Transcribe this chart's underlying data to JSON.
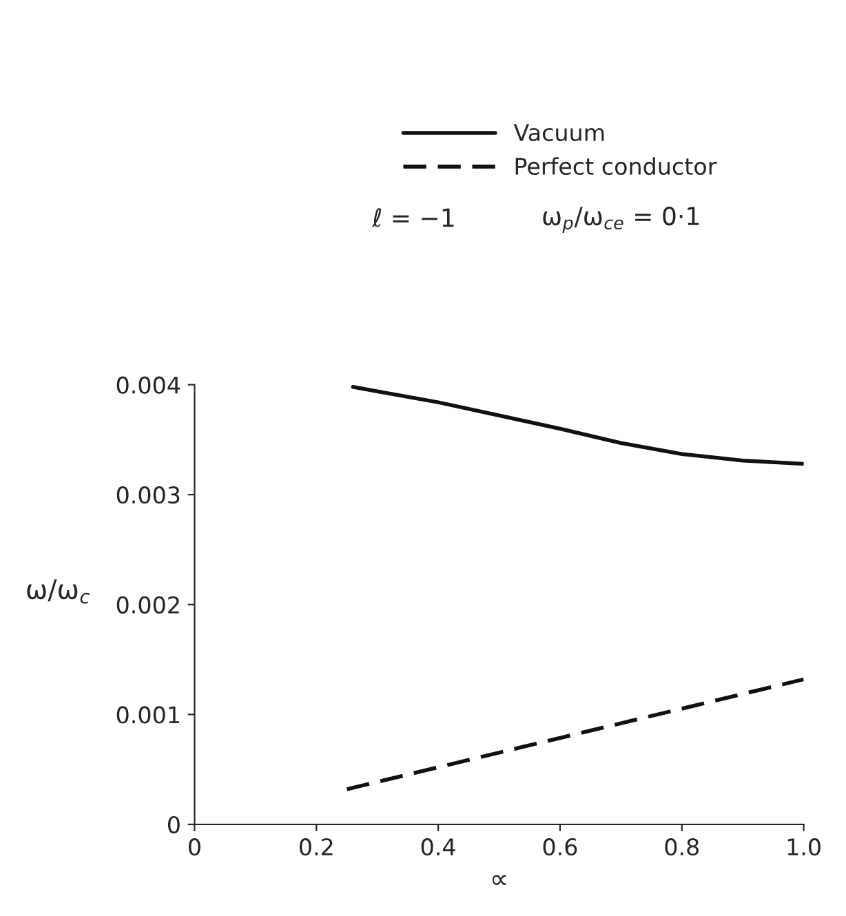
{
  "chart_data": {
    "type": "line",
    "xlabel": "∝",
    "ylabel": "ω/ω$_{c}$",
    "annotations": [
      "ℓ = −1",
      "ω$_{p}$/ω$_{ce}$ = 0·1"
    ],
    "series": [
      {
        "name": "Vacuum",
        "color": "#111111",
        "line_style": "solid",
        "x": [
          0.26,
          0.3,
          0.4,
          0.5,
          0.6,
          0.7,
          0.8,
          0.9,
          1.0
        ],
        "values": [
          0.00398,
          0.00394,
          0.00384,
          0.00372,
          0.0036,
          0.00347,
          0.00337,
          0.00331,
          0.00328
        ]
      },
      {
        "name": "Perfect conductor",
        "color": "#111111",
        "line_style": "dashed",
        "x": [
          0.25,
          1.0
        ],
        "values": [
          0.00032,
          0.00132
        ]
      }
    ],
    "xlim": [
      0,
      1.0
    ],
    "ylim": [
      0,
      0.004
    ],
    "xticks": [
      0,
      0.2,
      0.4,
      0.6,
      0.8,
      {
        "value": 1.0,
        "label": "1.0"
      }
    ],
    "yticks": [
      0,
      0.001,
      0.002,
      0.003,
      0.004
    ],
    "grid": false,
    "legend": "top"
  }
}
